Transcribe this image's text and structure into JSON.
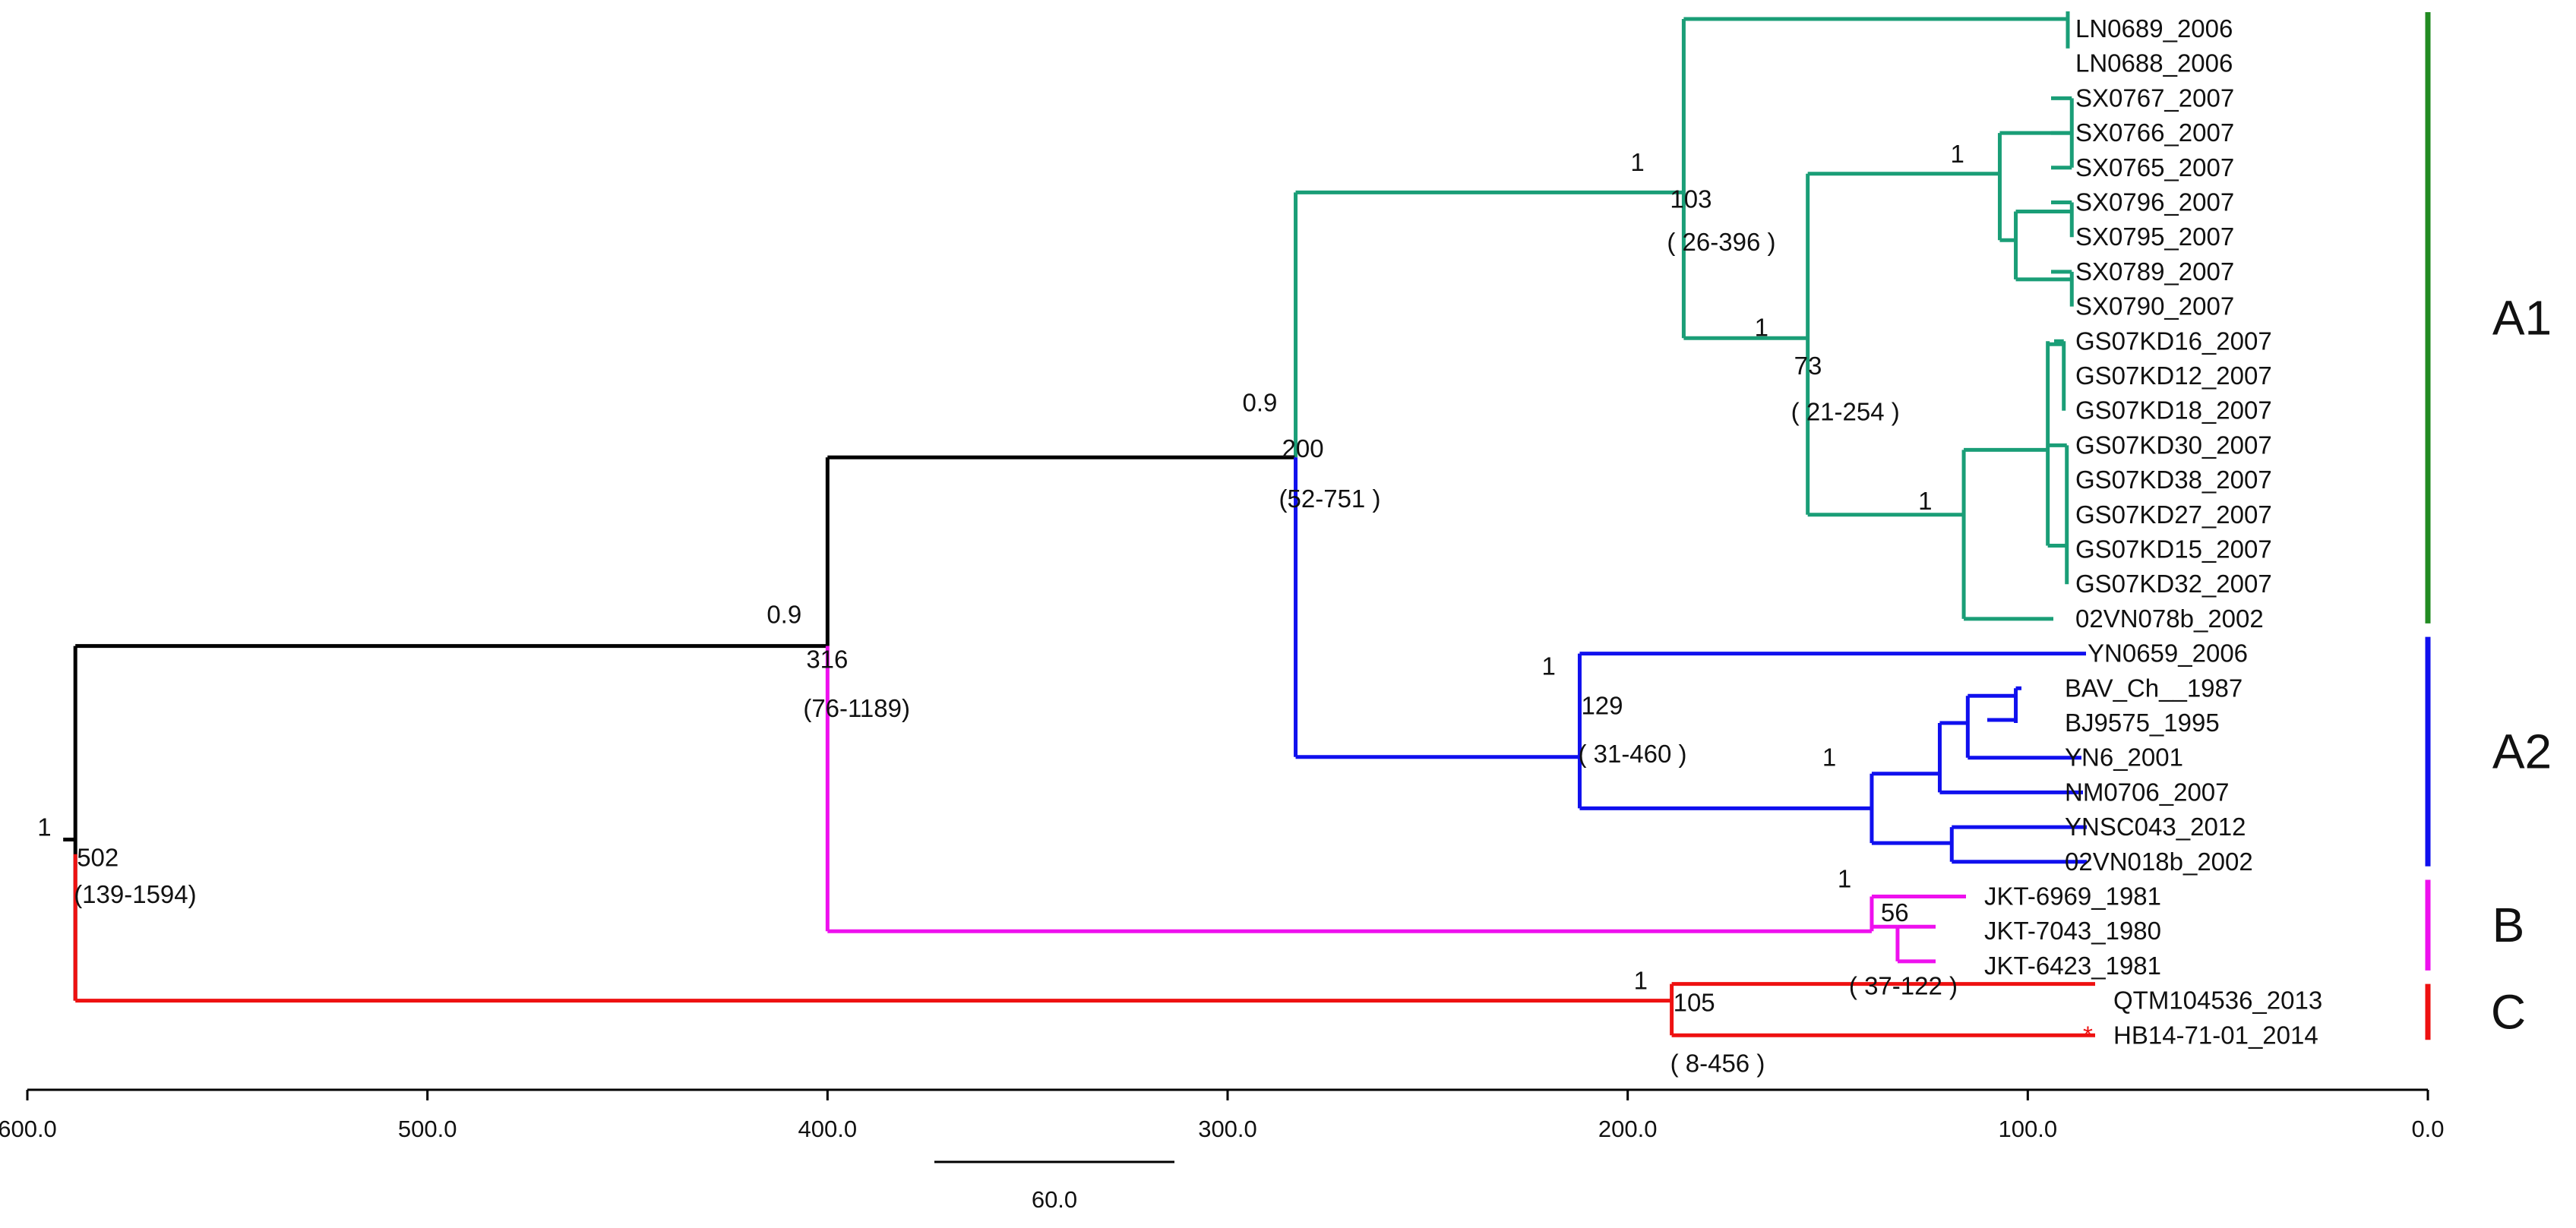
{
  "chart_data": {
    "type": "phylogenetic-tree",
    "time_axis": {
      "orientation": "reversed",
      "range": [
        600.0,
        0.0
      ],
      "ticks": [
        "600.0",
        "500.0",
        "400.0",
        "300.0",
        "200.0",
        "100.0",
        "0.0"
      ],
      "scale_bar_label": "60.0",
      "scale_bar_value": 60.0
    },
    "colors": {
      "A1": "#1a9e77",
      "A2": "#1010ee",
      "B": "#ee10ee",
      "C": "#ee1111",
      "root": "#000000",
      "clade_bar_A1": "#228b22"
    },
    "root": {
      "age": 588,
      "posterior": "1",
      "height": "502",
      "hpd": "(139-1594)"
    },
    "nodes": [
      {
        "id": "n400",
        "age": 400,
        "posterior": "0.9",
        "height": "316",
        "hpd": "(76-1189)"
      },
      {
        "id": "n283",
        "age": 283,
        "posterior": "0.9",
        "height": "200",
        "hpd": "(52-751 )"
      },
      {
        "id": "n186",
        "age": 186,
        "posterior": "1",
        "height": "103",
        "hpd": "( 26-396 )"
      },
      {
        "id": "n155",
        "age": 155,
        "posterior": "1",
        "height": "73",
        "hpd": "( 21-254 )"
      },
      {
        "id": "n107",
        "age": 107,
        "posterior": "1",
        "height": "",
        "hpd": ""
      },
      {
        "id": "n116",
        "age": 116,
        "posterior": "1",
        "height": "",
        "hpd": ""
      },
      {
        "id": "n212",
        "age": 212,
        "posterior": "1",
        "height": "129",
        "hpd": "( 31-460 )"
      },
      {
        "id": "n139",
        "age": 139,
        "posterior": "1",
        "height": "",
        "hpd": ""
      },
      {
        "id": "n139b",
        "age": 139,
        "posterior": "1",
        "height": "56",
        "hpd": "( 37-122 )"
      },
      {
        "id": "n189",
        "age": 189,
        "posterior": "1",
        "height": "105",
        "hpd": "( 8-456 )"
      }
    ],
    "leaves": [
      {
        "name": "LN0689_2006",
        "clade": "A1"
      },
      {
        "name": "LN0688_2006",
        "clade": "A1"
      },
      {
        "name": "SX0767_2007",
        "clade": "A1"
      },
      {
        "name": "SX0766_2007",
        "clade": "A1"
      },
      {
        "name": "SX0765_2007",
        "clade": "A1"
      },
      {
        "name": "SX0796_2007",
        "clade": "A1"
      },
      {
        "name": "SX0795_2007",
        "clade": "A1"
      },
      {
        "name": "SX0789_2007",
        "clade": "A1"
      },
      {
        "name": "SX0790_2007",
        "clade": "A1"
      },
      {
        "name": "GS07KD16_2007",
        "clade": "A1"
      },
      {
        "name": "GS07KD12_2007",
        "clade": "A1"
      },
      {
        "name": "GS07KD18_2007",
        "clade": "A1"
      },
      {
        "name": "GS07KD30_2007",
        "clade": "A1"
      },
      {
        "name": "GS07KD38_2007",
        "clade": "A1"
      },
      {
        "name": "GS07KD27_2007",
        "clade": "A1"
      },
      {
        "name": "GS07KD15_2007",
        "clade": "A1"
      },
      {
        "name": "GS07KD32_2007",
        "clade": "A1"
      },
      {
        "name": "02VN078b_2002",
        "clade": "A1"
      },
      {
        "name": "YN0659_2006",
        "clade": "A2"
      },
      {
        "name": "BAV_Ch__1987",
        "clade": "A2"
      },
      {
        "name": "BJ9575_1995",
        "clade": "A2"
      },
      {
        "name": "YN6_2001",
        "clade": "A2"
      },
      {
        "name": "NM0706_2007",
        "clade": "A2"
      },
      {
        "name": "YNSC043_2012",
        "clade": "A2"
      },
      {
        "name": "02VN018b_2002",
        "clade": "A2"
      },
      {
        "name": "JKT-6969_1981",
        "clade": "B"
      },
      {
        "name": "JKT-7043_1980",
        "clade": "B"
      },
      {
        "name": "JKT-6423_1981",
        "clade": "B"
      },
      {
        "name": "QTM104536_2013",
        "clade": "C"
      },
      {
        "name": "HB14-71-01_2014",
        "clade": "C",
        "marker": "*"
      }
    ],
    "clade_labels": [
      {
        "label": "A1",
        "from_leaf": 0,
        "to_leaf": 17
      },
      {
        "label": "A2",
        "from_leaf": 18,
        "to_leaf": 24
      },
      {
        "label": "B",
        "from_leaf": 25,
        "to_leaf": 27
      },
      {
        "label": "C",
        "from_leaf": 28,
        "to_leaf": 29
      }
    ]
  }
}
